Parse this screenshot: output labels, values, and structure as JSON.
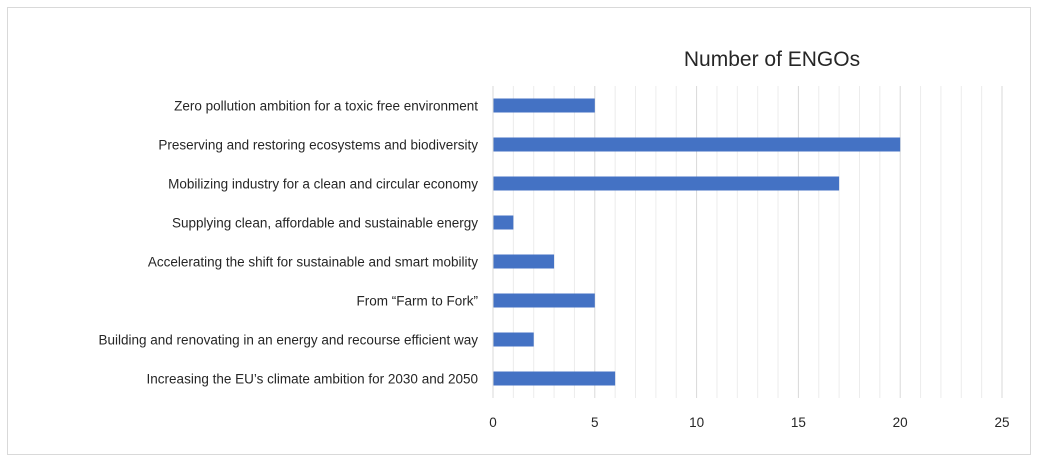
{
  "chart_data": {
    "type": "bar",
    "orientation": "horizontal",
    "title": "Number of ENGOs",
    "categories": [
      "Zero pollution ambition for a toxic free environment",
      "Preserving and restoring ecosystems and biodiversity",
      "Mobilizing industry for a clean and circular economy",
      "Supplying clean, affordable and sustainable energy",
      "Accelerating the shift for sustainable and smart mobility",
      "From “Farm to Fork”",
      "Building and renovating in an energy and recourse efficient way",
      "Increasing the EU’s climate ambition for 2030 and 2050"
    ],
    "values": [
      5,
      20,
      17,
      1,
      3,
      5,
      2,
      6
    ],
    "xlim": [
      0,
      25
    ],
    "xticks": [
      "0",
      "5",
      "10",
      "15",
      "20",
      "25"
    ],
    "bar_color": "#4472c4",
    "grid": "vertical minor gridlines",
    "xlabel": "",
    "ylabel": ""
  }
}
